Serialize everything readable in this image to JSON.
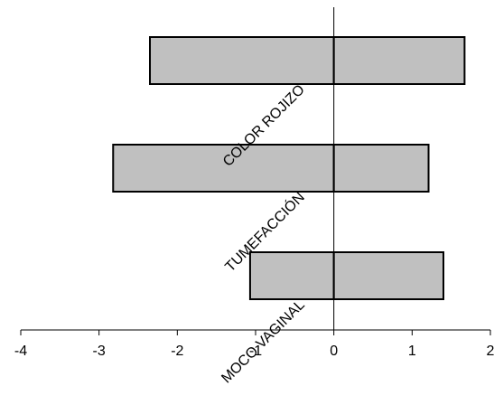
{
  "chart_data": {
    "type": "bar",
    "orientation": "horizontal",
    "stacked": "diverging",
    "categories": [
      "COLOR ROJIZO",
      "TUMEFACCIÓN",
      "MOCO VAGINAL"
    ],
    "series": [
      {
        "values": [
          -2.35,
          -2.82,
          -1.07
        ]
      },
      {
        "values": [
          1.67,
          1.21,
          1.4
        ]
      }
    ],
    "xlim": [
      -4,
      2
    ],
    "x_ticks": [
      "-4",
      "-3",
      "-2",
      "-1",
      "0",
      "1",
      "2"
    ],
    "bar_color": "#c0c0c0",
    "edge_color": "#000000",
    "grid": false,
    "legend": "none",
    "title": "",
    "xlabel": "",
    "ylabel": ""
  }
}
